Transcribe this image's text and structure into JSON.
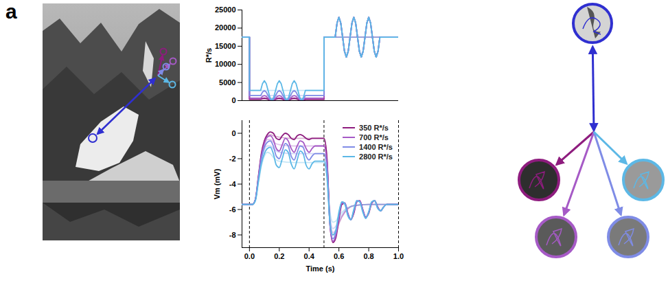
{
  "panel_label": "a",
  "chart_data": [
    {
      "type": "line",
      "y_label": "R*/s",
      "tick_labels": "y",
      "xlim": [
        -0.05,
        1
      ],
      "ylim": [
        0,
        25000
      ],
      "yticks": [
        0,
        5000,
        10000,
        15000,
        20000,
        25000
      ],
      "x": [
        -0.05,
        0,
        0,
        0.075,
        0.0875,
        0.1,
        0.1125,
        0.125,
        0.1375,
        0.15,
        0.1625,
        0.175,
        0.1875,
        0.2,
        0.2125,
        0.225,
        0.2375,
        0.25,
        0.2625,
        0.275,
        0.2875,
        0.3,
        0.3125,
        0.325,
        0.3375,
        0.35,
        0.3625,
        0.375,
        0.5,
        0.5,
        0.575,
        0.5875,
        0.6,
        0.6125,
        0.625,
        0.6375,
        0.65,
        0.6625,
        0.675,
        0.6875,
        0.7,
        0.7125,
        0.725,
        0.7375,
        0.75,
        0.7625,
        0.775,
        0.7875,
        0.8,
        0.8125,
        0.825,
        0.8375,
        0.85,
        0.8625,
        0.875,
        1
      ],
      "steady_x": [
        -0.05,
        0,
        0,
        0.5,
        0.5,
        1
      ],
      "series": [
        {
          "color": "#8e1c7e",
          "values": [
            17500,
            17500,
            350,
            350,
            590,
            690,
            590,
            350,
            110,
            10,
            110,
            350,
            590,
            690,
            590,
            350,
            110,
            10,
            110,
            350,
            590,
            690,
            590,
            350,
            110,
            10,
            110,
            350,
            350,
            17500,
            17500,
            21389,
            23000,
            21389,
            17500,
            13611,
            12000,
            13611,
            17500,
            21389,
            23000,
            21389,
            17500,
            13611,
            12000,
            13611,
            17500,
            21389,
            23000,
            21389,
            17500,
            13611,
            12000,
            13611,
            17500,
            17500
          ],
          "steady_values": [
            17500,
            17500,
            350,
            350,
            17500,
            17500
          ]
        },
        {
          "color": "#a65ac6",
          "values": [
            17500,
            17500,
            700,
            700,
            1177,
            1375,
            1177,
            700,
            223,
            25,
            223,
            700,
            1177,
            1375,
            1177,
            700,
            223,
            25,
            223,
            700,
            1177,
            1375,
            1177,
            700,
            223,
            25,
            223,
            700,
            700,
            17500,
            17500,
            21389,
            23000,
            21389,
            17500,
            13611,
            12000,
            13611,
            17500,
            21389,
            23000,
            21389,
            17500,
            13611,
            12000,
            13611,
            17500,
            21389,
            23000,
            21389,
            17500,
            13611,
            12000,
            13611,
            17500,
            17500
          ],
          "steady_values": [
            17500,
            17500,
            700,
            700,
            17500,
            17500
          ]
        },
        {
          "color": "#7f8ce6",
          "values": [
            17500,
            17500,
            1400,
            1400,
            2355,
            2750,
            2355,
            1400,
            445,
            50,
            445,
            1400,
            2355,
            2750,
            2355,
            1400,
            445,
            50,
            445,
            1400,
            2355,
            2750,
            2355,
            1400,
            445,
            50,
            445,
            1400,
            1400,
            17500,
            17500,
            21389,
            23000,
            21389,
            17500,
            13611,
            12000,
            13611,
            17500,
            21389,
            23000,
            21389,
            17500,
            13611,
            12000,
            13611,
            17500,
            21389,
            23000,
            21389,
            17500,
            13611,
            12000,
            13611,
            17500,
            17500
          ],
          "steady_values": [
            17500,
            17500,
            1400,
            1400,
            17500,
            17500
          ]
        },
        {
          "color": "#5cb8e6",
          "values": [
            17500,
            17500,
            2800,
            2800,
            4709,
            5500,
            4709,
            2800,
            891,
            100,
            891,
            2800,
            4709,
            5500,
            4709,
            2800,
            891,
            100,
            891,
            2800,
            4709,
            5500,
            4709,
            2800,
            891,
            100,
            891,
            2800,
            2800,
            17500,
            17500,
            21389,
            23000,
            21389,
            17500,
            13611,
            12000,
            13611,
            17500,
            21389,
            23000,
            21389,
            17500,
            13611,
            12000,
            13611,
            17500,
            21389,
            23000,
            21389,
            17500,
            13611,
            12000,
            13611,
            17500,
            17500
          ],
          "steady_values": [
            17500,
            17500,
            2800,
            2800,
            17500,
            17500
          ]
        }
      ]
    },
    {
      "type": "line",
      "x_label": "Time (s)",
      "y_label": "Vm (mV)",
      "legend": "upper right",
      "xlim": [
        -0.05,
        1
      ],
      "xticks": [
        {
          "value": 0,
          "label": "0.0"
        },
        0.2,
        0.4,
        0.6,
        0.8,
        {
          "value": 1,
          "label": "1.0"
        }
      ],
      "ylim": [
        -9,
        1
      ],
      "yticks": [
        -8,
        -6,
        -4,
        -2,
        0
      ],
      "vlines": [
        0,
        0.5,
        1
      ],
      "x": [
        -0.05,
        0,
        0.02,
        0.04,
        0.06,
        0.08,
        0.1,
        0.12,
        0.14,
        0.16,
        0.18,
        0.2,
        0.22,
        0.24,
        0.26,
        0.28,
        0.3,
        0.32,
        0.34,
        0.36,
        0.38,
        0.4,
        0.42,
        0.44,
        0.46,
        0.48,
        0.5,
        0.52,
        0.54,
        0.56,
        0.58,
        0.6,
        0.62,
        0.64,
        0.66,
        0.68,
        0.7,
        0.72,
        0.74,
        0.76,
        0.78,
        0.8,
        0.82,
        0.84,
        0.86,
        0.88,
        0.9,
        0.92,
        0.94,
        0.96,
        0.98,
        1
      ],
      "steady_x": [
        -0.05,
        0,
        0.02,
        0.04,
        0.06,
        0.08,
        0.1,
        0.12,
        0.14,
        0.16,
        0.2,
        0.3,
        0.4,
        0.5,
        0.52,
        0.54,
        0.56,
        0.58,
        0.6,
        0.64,
        0.7,
        0.8,
        1
      ],
      "series": [
        {
          "name": "350 R*/s",
          "color": "#8e1c7e",
          "values": [
            -5.6,
            -5.6,
            -5.6,
            -5.2,
            -3.4,
            -1.6,
            -0.6,
            -0.1,
            0.1,
            0.0,
            -0.4,
            -0.5,
            -0.2,
            0.0,
            -0.1,
            -0.4,
            -0.5,
            -0.2,
            -0.1,
            -0.2,
            -0.4,
            -0.5,
            -0.4,
            -0.4,
            -0.4,
            -0.4,
            -0.4,
            -2.0,
            -7.2,
            -8.6,
            -8.2,
            -6.8,
            -5.6,
            -5.5,
            -6.3,
            -6.8,
            -6.3,
            -5.4,
            -5.3,
            -6.0,
            -6.6,
            -6.3,
            -5.5,
            -5.3,
            -5.8,
            -6.1,
            -5.8,
            -5.6,
            -5.6,
            -5.6,
            -5.6,
            -5.6
          ],
          "steady_values": [
            -5.6,
            -5.6,
            -5.6,
            -5.2,
            -3.4,
            -1.6,
            -0.6,
            -0.2,
            -0.1,
            -0.2,
            -0.3,
            -0.4,
            -0.4,
            -0.4,
            -1.9,
            -6.9,
            -8.0,
            -7.8,
            -7.1,
            -6.2,
            -5.7,
            -5.6,
            -5.6
          ]
        },
        {
          "name": "700 R*/s",
          "color": "#a65ac6",
          "values": [
            -5.6,
            -5.6,
            -5.6,
            -5.2,
            -3.5,
            -1.8,
            -0.8,
            -0.3,
            -0.2,
            -0.5,
            -1.2,
            -1.4,
            -0.9,
            -0.4,
            -0.6,
            -1.2,
            -1.5,
            -1.0,
            -0.6,
            -0.7,
            -1.2,
            -1.5,
            -1.2,
            -1.0,
            -1.0,
            -1.0,
            -1.0,
            -2.3,
            -7.2,
            -8.5,
            -8.0,
            -6.6,
            -5.5,
            -5.5,
            -6.3,
            -6.8,
            -6.2,
            -5.4,
            -5.3,
            -6.0,
            -6.6,
            -6.2,
            -5.5,
            -5.3,
            -5.8,
            -6.1,
            -5.8,
            -5.6,
            -5.6,
            -5.6,
            -5.6,
            -5.6
          ],
          "steady_values": [
            -5.6,
            -5.6,
            -5.6,
            -5.2,
            -3.5,
            -1.8,
            -0.9,
            -0.5,
            -0.5,
            -0.7,
            -0.9,
            -1.0,
            -1.0,
            -1.0,
            -2.2,
            -6.8,
            -7.8,
            -7.6,
            -7.0,
            -6.2,
            -5.7,
            -5.6,
            -5.6
          ]
        },
        {
          "name": "1400 R*/s",
          "color": "#7f8ce6",
          "values": [
            -5.6,
            -5.6,
            -5.6,
            -5.2,
            -3.6,
            -2.0,
            -1.1,
            -0.7,
            -0.6,
            -1.0,
            -1.8,
            -2.0,
            -1.4,
            -0.8,
            -1.0,
            -1.8,
            -2.1,
            -1.5,
            -1.0,
            -1.1,
            -1.8,
            -2.1,
            -1.8,
            -1.6,
            -1.6,
            -1.6,
            -1.6,
            -2.8,
            -7.1,
            -8.3,
            -7.8,
            -6.4,
            -5.4,
            -5.5,
            -6.4,
            -6.8,
            -6.1,
            -5.3,
            -5.4,
            -6.1,
            -6.7,
            -6.2,
            -5.4,
            -5.3,
            -5.9,
            -6.1,
            -5.8,
            -5.6,
            -5.6,
            -5.6,
            -5.6,
            -5.6
          ],
          "steady_values": [
            -5.6,
            -5.6,
            -5.6,
            -5.2,
            -3.7,
            -2.1,
            -1.3,
            -1.0,
            -1.0,
            -1.2,
            -1.5,
            -1.6,
            -1.6,
            -1.6,
            -2.7,
            -6.5,
            -7.5,
            -7.3,
            -6.8,
            -6.1,
            -5.7,
            -5.6,
            -5.6
          ]
        },
        {
          "name": "2800 R*/s",
          "color": "#5cb8e6",
          "values": [
            -5.6,
            -5.6,
            -5.6,
            -5.3,
            -3.8,
            -2.4,
            -1.6,
            -1.2,
            -1.1,
            -1.6,
            -2.5,
            -2.7,
            -2.0,
            -1.3,
            -1.5,
            -2.4,
            -2.8,
            -2.1,
            -1.4,
            -1.6,
            -2.5,
            -2.8,
            -2.4,
            -2.2,
            -2.2,
            -2.2,
            -2.2,
            -3.5,
            -7.0,
            -8.0,
            -7.6,
            -6.2,
            -5.4,
            -5.6,
            -6.5,
            -6.8,
            -6.0,
            -5.3,
            -5.4,
            -6.2,
            -6.7,
            -6.2,
            -5.4,
            -5.3,
            -5.9,
            -6.1,
            -5.8,
            -5.6,
            -5.6,
            -5.6,
            -5.6,
            -5.6
          ],
          "steady_values": [
            -5.6,
            -5.6,
            -5.6,
            -5.3,
            -3.9,
            -2.6,
            -1.8,
            -1.5,
            -1.6,
            -1.9,
            -2.2,
            -2.3,
            -2.3,
            -2.3,
            -3.3,
            -6.2,
            -7.0,
            -6.9,
            -6.5,
            -6.0,
            -5.7,
            -5.6,
            -5.6
          ]
        }
      ]
    }
  ]
}
